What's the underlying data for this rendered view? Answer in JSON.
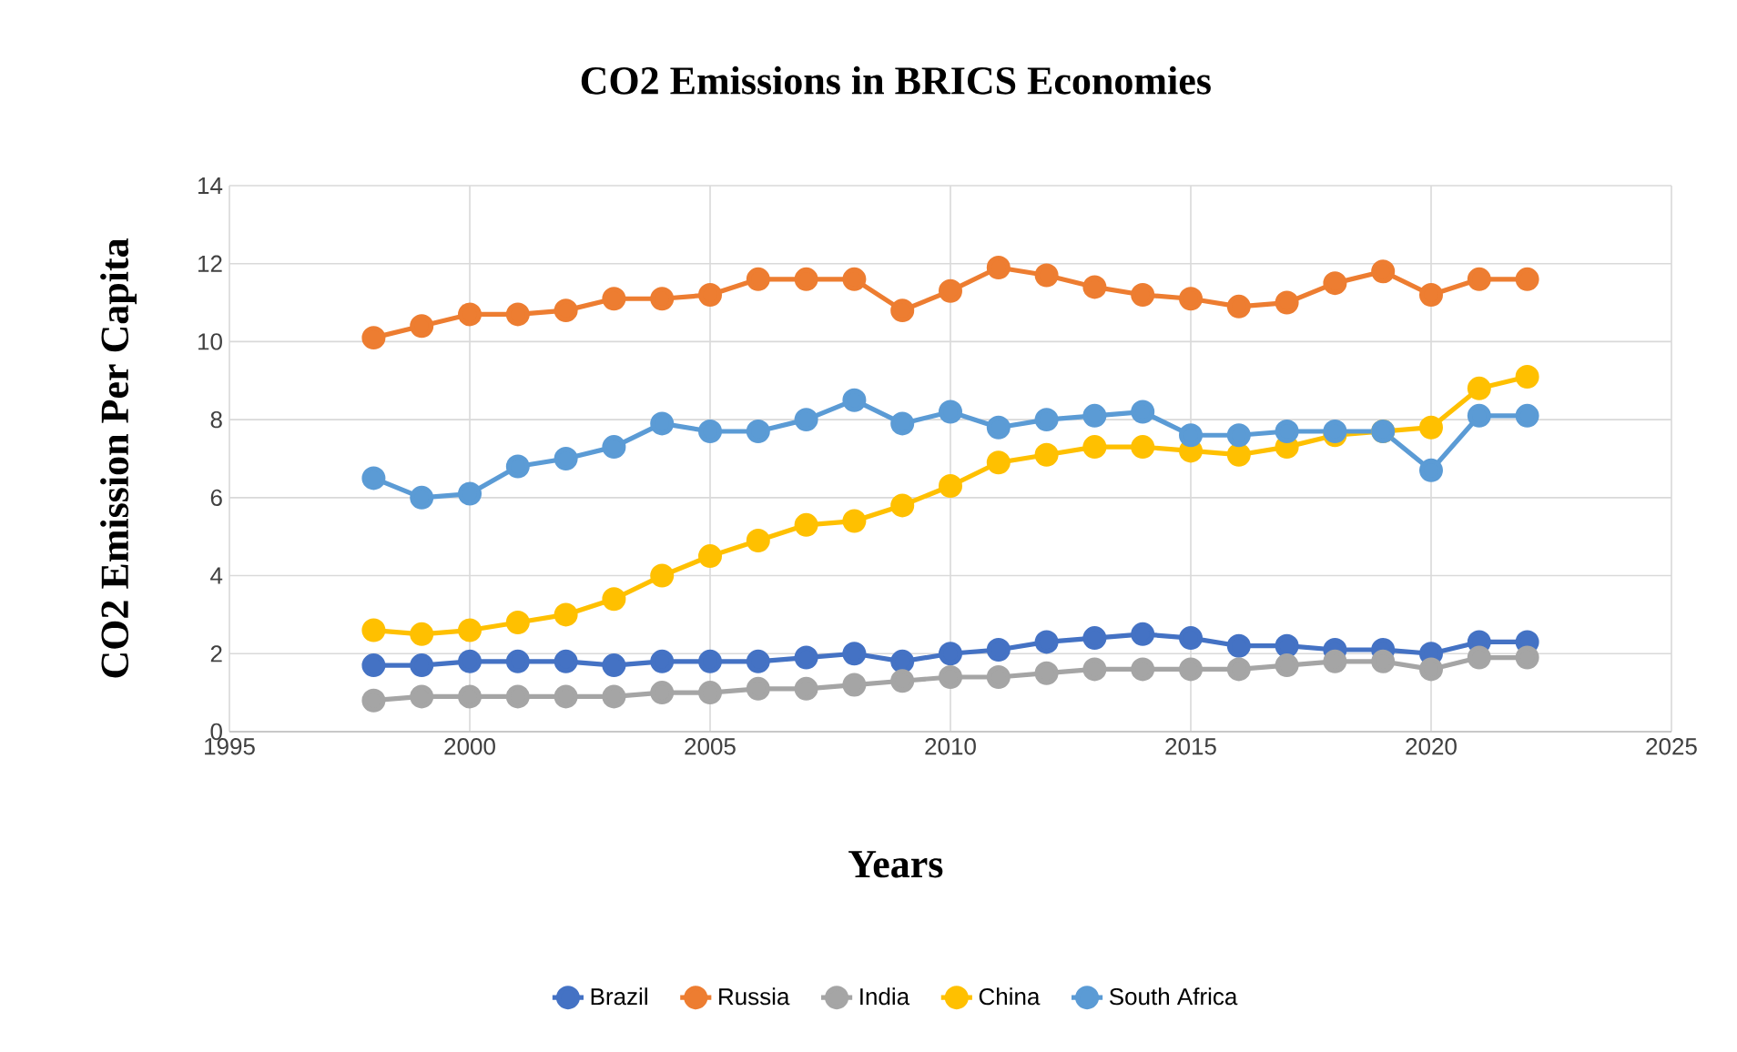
{
  "chart_data": {
    "type": "line",
    "title": "CO2 Emissions in BRICS Economies",
    "xlabel": "Years",
    "ylabel": "CO2 Emission Per Capita",
    "x": [
      1998,
      1999,
      2000,
      2001,
      2002,
      2003,
      2004,
      2005,
      2006,
      2007,
      2008,
      2009,
      2010,
      2011,
      2012,
      2013,
      2014,
      2015,
      2016,
      2017,
      2018,
      2019,
      2020,
      2021,
      2022
    ],
    "series": [
      {
        "name": "Brazil",
        "color": "#4472c4",
        "values": [
          1.7,
          1.7,
          1.8,
          1.8,
          1.8,
          1.7,
          1.8,
          1.8,
          1.8,
          1.9,
          2.0,
          1.8,
          2.0,
          2.1,
          2.3,
          2.4,
          2.5,
          2.4,
          2.2,
          2.2,
          2.1,
          2.1,
          2.0,
          2.3,
          2.3
        ]
      },
      {
        "name": "Russia",
        "color": "#ed7d31",
        "values": [
          10.1,
          10.4,
          10.7,
          10.7,
          10.8,
          11.1,
          11.1,
          11.2,
          11.6,
          11.6,
          11.6,
          10.8,
          11.3,
          11.9,
          11.7,
          11.4,
          11.2,
          11.1,
          10.9,
          11.0,
          11.5,
          11.8,
          11.2,
          11.6,
          11.6
        ]
      },
      {
        "name": "India",
        "color": "#a5a5a5",
        "values": [
          0.8,
          0.9,
          0.9,
          0.9,
          0.9,
          0.9,
          1.0,
          1.0,
          1.1,
          1.1,
          1.2,
          1.3,
          1.4,
          1.4,
          1.5,
          1.6,
          1.6,
          1.6,
          1.6,
          1.7,
          1.8,
          1.8,
          1.6,
          1.9,
          1.9
        ]
      },
      {
        "name": "China",
        "color": "#ffc000",
        "values": [
          2.6,
          2.5,
          2.6,
          2.8,
          3.0,
          3.4,
          4.0,
          4.5,
          4.9,
          5.3,
          5.4,
          5.8,
          6.3,
          6.9,
          7.1,
          7.3,
          7.3,
          7.2,
          7.1,
          7.3,
          7.6,
          7.7,
          7.8,
          8.8,
          9.1
        ]
      },
      {
        "name": "South Africa",
        "color": "#5b9bd5",
        "values": [
          6.5,
          6.0,
          6.1,
          6.8,
          7.0,
          7.3,
          7.9,
          7.7,
          7.7,
          8.0,
          8.5,
          7.9,
          8.2,
          7.8,
          8.0,
          8.1,
          8.2,
          7.6,
          7.6,
          7.7,
          7.7,
          7.7,
          6.7,
          8.1,
          8.1
        ]
      }
    ],
    "xlim": [
      1995,
      2025
    ],
    "xticks": [
      1995,
      2000,
      2005,
      2010,
      2015,
      2020,
      2025
    ],
    "ylim": [
      0,
      14
    ],
    "yticks": [
      0,
      2,
      4,
      6,
      8,
      10,
      12,
      14
    ],
    "grid": true,
    "legend": "bottom",
    "marker": "circle",
    "line_style": "solid"
  }
}
